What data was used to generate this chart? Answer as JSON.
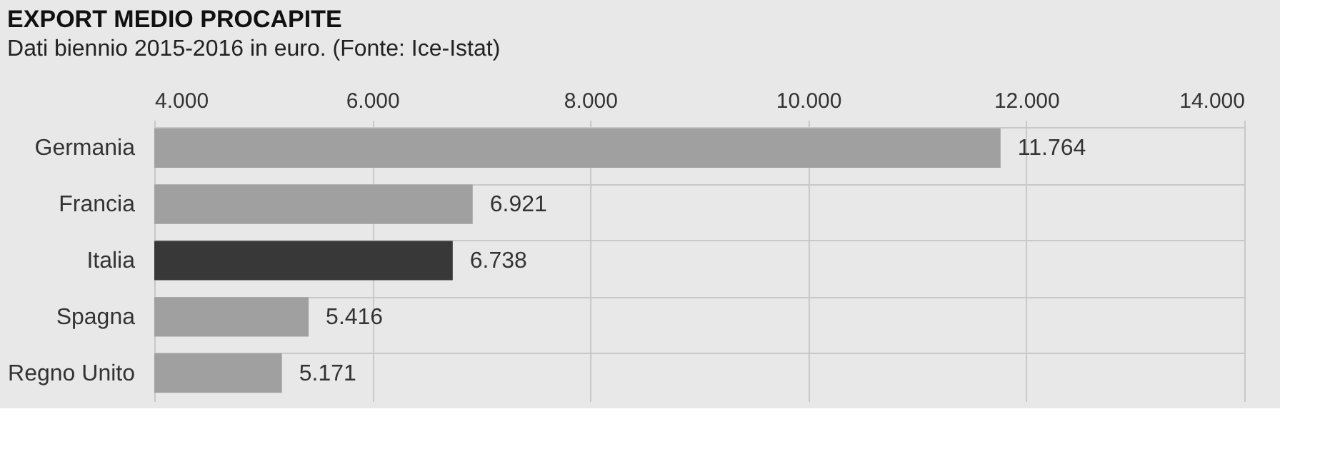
{
  "chart_data": {
    "type": "bar",
    "orientation": "horizontal",
    "title": "EXPORT MEDIO PROCAPITE",
    "subtitle": "Dati biennio 2015-2016 in euro. (Fonte: Ice-Istat)",
    "categories": [
      "Germania",
      "Francia",
      "Italia",
      "Spagna",
      "Regno Unito"
    ],
    "values": [
      11764,
      6921,
      6738,
      5416,
      5171
    ],
    "colors": [
      "#a0a0a0",
      "#a0a0a0",
      "#383838",
      "#a0a0a0",
      "#a0a0a0"
    ],
    "value_labels": [
      "11.764",
      "6.921",
      "6.738",
      "5.416",
      "5.171"
    ],
    "xlim": [
      4000,
      14000
    ],
    "xticks": [
      {
        "value": 4000,
        "label": "4.000"
      },
      {
        "value": 6000,
        "label": "6.000"
      },
      {
        "value": 8000,
        "label": "8.000"
      },
      {
        "value": 10000,
        "label": "10.000"
      },
      {
        "value": 12000,
        "label": "12.000"
      },
      {
        "value": 14000,
        "label": "14.000"
      }
    ],
    "grid": true
  }
}
